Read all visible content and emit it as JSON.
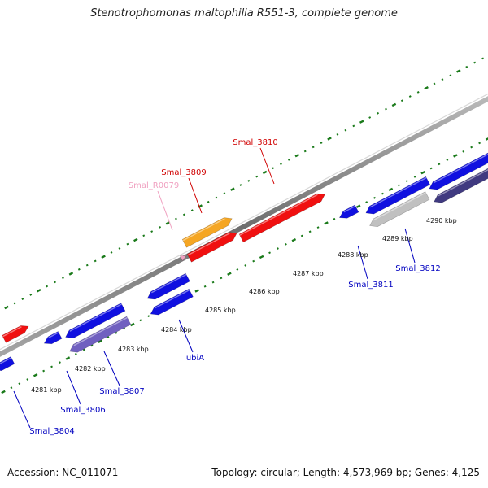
{
  "title": "Stenotrophomonas maltophilia R551-3, complete genome",
  "footer": {
    "accession": "Accession: NC_011071",
    "summary": "Topology: circular; Length: 4,573,969 bp; Genes: 4,125"
  },
  "colors": {
    "forward_gene": "#f01010",
    "reverse_gene": "#1010e0",
    "rna_gene": "#f5a623",
    "pseudo_gene": "#c0c0c0",
    "operon_purple": "#7060c0",
    "operon_dark": "#403a80",
    "trna_pink": "#f0a0c0",
    "tick_green": "#1a7a1a",
    "backbone": "#888888"
  },
  "axis": {
    "ticks": [
      "4281 kbp",
      "4282 kbp",
      "4283 kbp",
      "4284 kbp",
      "4285 kbp",
      "4286 kbp",
      "4287 kbp",
      "4288 kbp",
      "4289 kbp",
      "4290 kbp"
    ]
  },
  "genes": [
    {
      "id": "g1",
      "strand": "forward",
      "kind": "cds"
    },
    {
      "id": "g2",
      "strand": "reverse",
      "kind": "cds"
    },
    {
      "id": "g3",
      "strand": "reverse",
      "kind": "cds"
    },
    {
      "id": "g4",
      "strand": "reverse",
      "kind": "cds"
    },
    {
      "id": "g5",
      "strand": "reverse",
      "kind": "operon"
    },
    {
      "id": "g6",
      "strand": "reverse",
      "kind": "cds"
    },
    {
      "id": "g7",
      "strand": "reverse",
      "kind": "cds"
    },
    {
      "id": "g8",
      "strand": "forward",
      "kind": "trna"
    },
    {
      "id": "g9",
      "strand": "forward",
      "kind": "rna"
    },
    {
      "id": "g10",
      "strand": "forward",
      "kind": "cds"
    },
    {
      "id": "g11",
      "strand": "forward",
      "kind": "cds"
    },
    {
      "id": "g12",
      "strand": "reverse",
      "kind": "cds"
    },
    {
      "id": "g13",
      "strand": "reverse",
      "kind": "cds"
    },
    {
      "id": "g14",
      "strand": "reverse",
      "kind": "pseudo"
    },
    {
      "id": "g15",
      "strand": "reverse",
      "kind": "cds"
    },
    {
      "id": "g16",
      "strand": "reverse",
      "kind": "operon_dark"
    }
  ],
  "labels": [
    {
      "text": "Smal_3810",
      "color": "#d00000"
    },
    {
      "text": "Smal_3809",
      "color": "#d00000"
    },
    {
      "text": "Smal_R0079",
      "color": "#f0a0c0"
    },
    {
      "text": "Smal_3811",
      "color": "#0000c0"
    },
    {
      "text": "Smal_3812",
      "color": "#0000c0"
    },
    {
      "text": "ubiA",
      "color": "#0000c0"
    },
    {
      "text": "Smal_3807",
      "color": "#0000c0"
    },
    {
      "text": "Smal_3806",
      "color": "#0000c0"
    },
    {
      "text": "Smal_3804",
      "color": "#0000c0"
    }
  ]
}
